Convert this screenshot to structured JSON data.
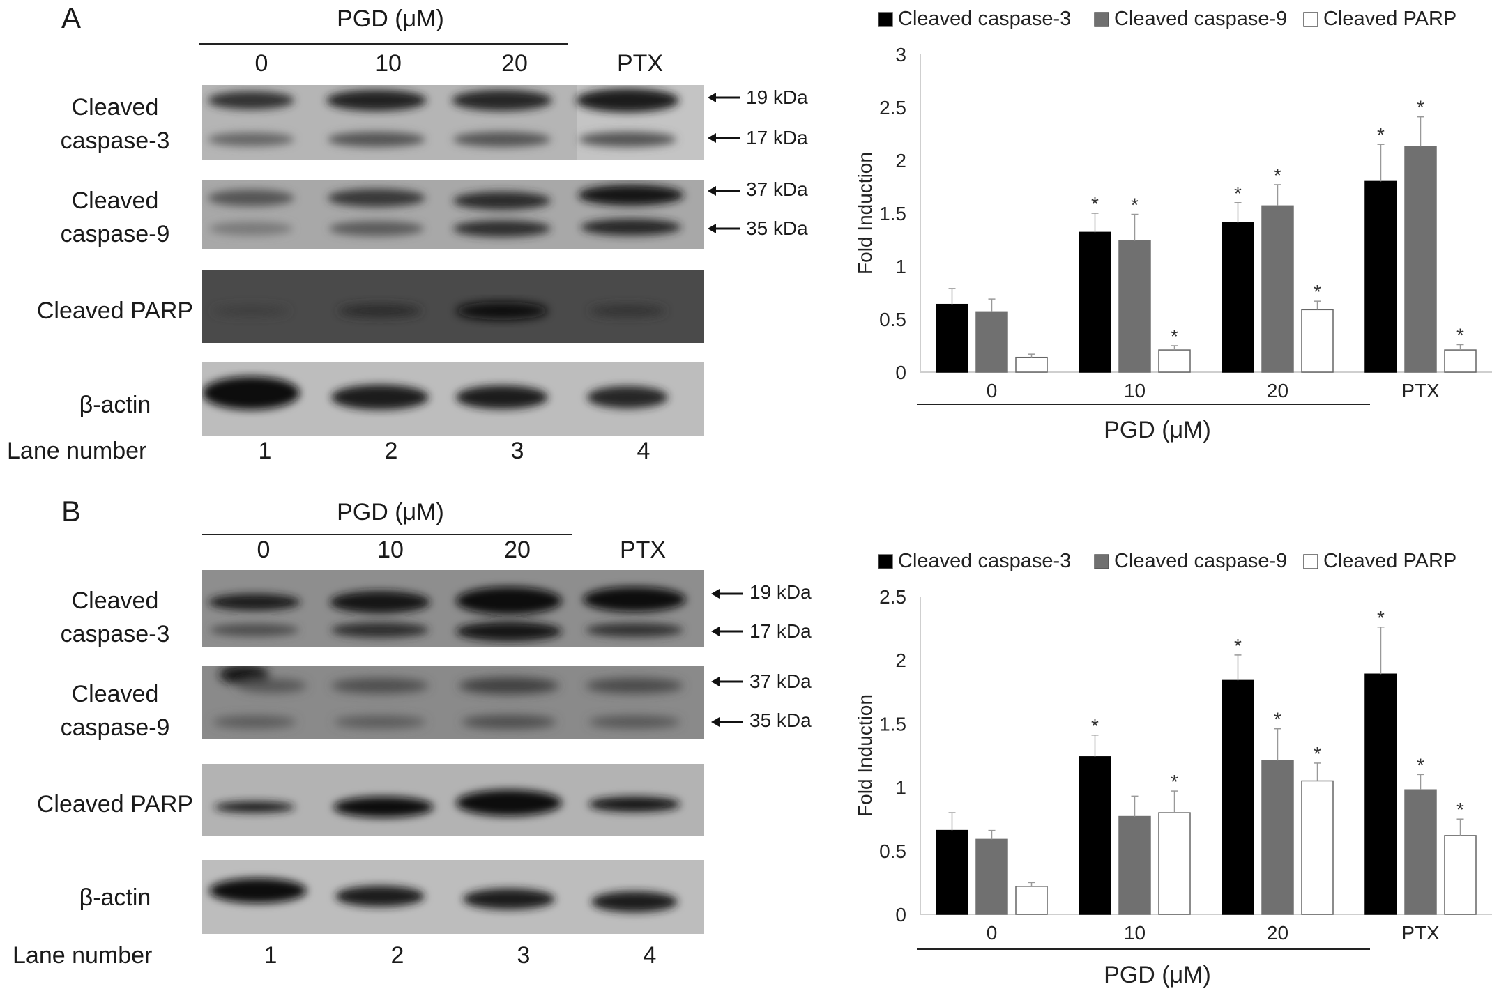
{
  "panels": [
    {
      "letter": "A",
      "header": {
        "group_label": "PGD (μM)",
        "lanes": [
          "0",
          "10",
          "20",
          "PTX"
        ]
      },
      "blots": [
        {
          "label_lines": [
            "Cleaved",
            "caspase-3"
          ],
          "markers": [
            "19 kDa",
            "17 kDa"
          ]
        },
        {
          "label_lines": [
            "Cleaved",
            "caspase-9"
          ],
          "markers": [
            "37 kDa",
            "35 kDa"
          ]
        },
        {
          "label_lines": [
            "Cleaved PARP"
          ],
          "markers": []
        },
        {
          "label_lines": [
            "β-actin"
          ],
          "markers": []
        }
      ],
      "lane_numbers": {
        "label": "Lane number",
        "values": [
          "1",
          "2",
          "3",
          "4"
        ]
      }
    },
    {
      "letter": "B",
      "header": {
        "group_label": "PGD (μM)",
        "lanes": [
          "0",
          "10",
          "20",
          "PTX"
        ]
      },
      "blots": [
        {
          "label_lines": [
            "Cleaved",
            "caspase-3"
          ],
          "markers": [
            "19 kDa",
            "17 kDa"
          ]
        },
        {
          "label_lines": [
            "Cleaved",
            "caspase-9"
          ],
          "markers": [
            "37 kDa",
            "35 kDa"
          ]
        },
        {
          "label_lines": [
            "Cleaved PARP"
          ],
          "markers": []
        },
        {
          "label_lines": [
            "β-actin"
          ],
          "markers": []
        }
      ],
      "lane_numbers": {
        "label": "Lane number",
        "values": [
          "1",
          "2",
          "3",
          "4"
        ]
      }
    }
  ],
  "chart_data": [
    {
      "type": "bar",
      "categories": [
        "0",
        "10",
        "20",
        "PTX"
      ],
      "group_label": "PGD (μM)",
      "xlabel": "",
      "ylabel": "Fold Induction",
      "ylim": [
        0,
        3
      ],
      "yticks": [
        0,
        0.5,
        1,
        1.5,
        2,
        2.5,
        3
      ],
      "legend_position": "top",
      "series": [
        {
          "name": "Cleaved caspase-3",
          "color": "#000000",
          "values": [
            0.64,
            1.32,
            1.41,
            1.8
          ],
          "errors": [
            0.15,
            0.18,
            0.19,
            0.35
          ],
          "significant": [
            false,
            true,
            true,
            true
          ]
        },
        {
          "name": "Cleaved caspase-9",
          "color": "#707070",
          "values": [
            0.57,
            1.24,
            1.57,
            2.13
          ],
          "errors": [
            0.12,
            0.25,
            0.2,
            0.28
          ],
          "significant": [
            false,
            true,
            true,
            true
          ]
        },
        {
          "name": "Cleaved PARP",
          "color": "#ffffff",
          "values": [
            0.14,
            0.21,
            0.59,
            0.21
          ],
          "errors": [
            0.03,
            0.04,
            0.08,
            0.05
          ],
          "significant": [
            false,
            true,
            true,
            true
          ]
        }
      ]
    },
    {
      "type": "bar",
      "categories": [
        "0",
        "10",
        "20",
        "PTX"
      ],
      "group_label": "PGD (μM)",
      "xlabel": "",
      "ylabel": "Fold Induction",
      "ylim": [
        0,
        2.5
      ],
      "yticks": [
        0,
        0.5,
        1,
        1.5,
        2,
        2.5
      ],
      "legend_position": "top",
      "series": [
        {
          "name": "Cleaved caspase-3",
          "color": "#000000",
          "values": [
            0.66,
            1.24,
            1.84,
            1.89
          ],
          "errors": [
            0.14,
            0.17,
            0.2,
            0.37
          ],
          "significant": [
            false,
            true,
            true,
            true
          ]
        },
        {
          "name": "Cleaved caspase-9",
          "color": "#707070",
          "values": [
            0.59,
            0.77,
            1.21,
            0.98
          ],
          "errors": [
            0.07,
            0.16,
            0.25,
            0.12
          ],
          "significant": [
            false,
            false,
            true,
            true
          ]
        },
        {
          "name": "Cleaved PARP",
          "color": "#ffffff",
          "values": [
            0.22,
            0.8,
            1.05,
            0.62
          ],
          "errors": [
            0.03,
            0.17,
            0.14,
            0.13
          ],
          "significant": [
            false,
            true,
            true,
            true
          ]
        }
      ]
    }
  ]
}
